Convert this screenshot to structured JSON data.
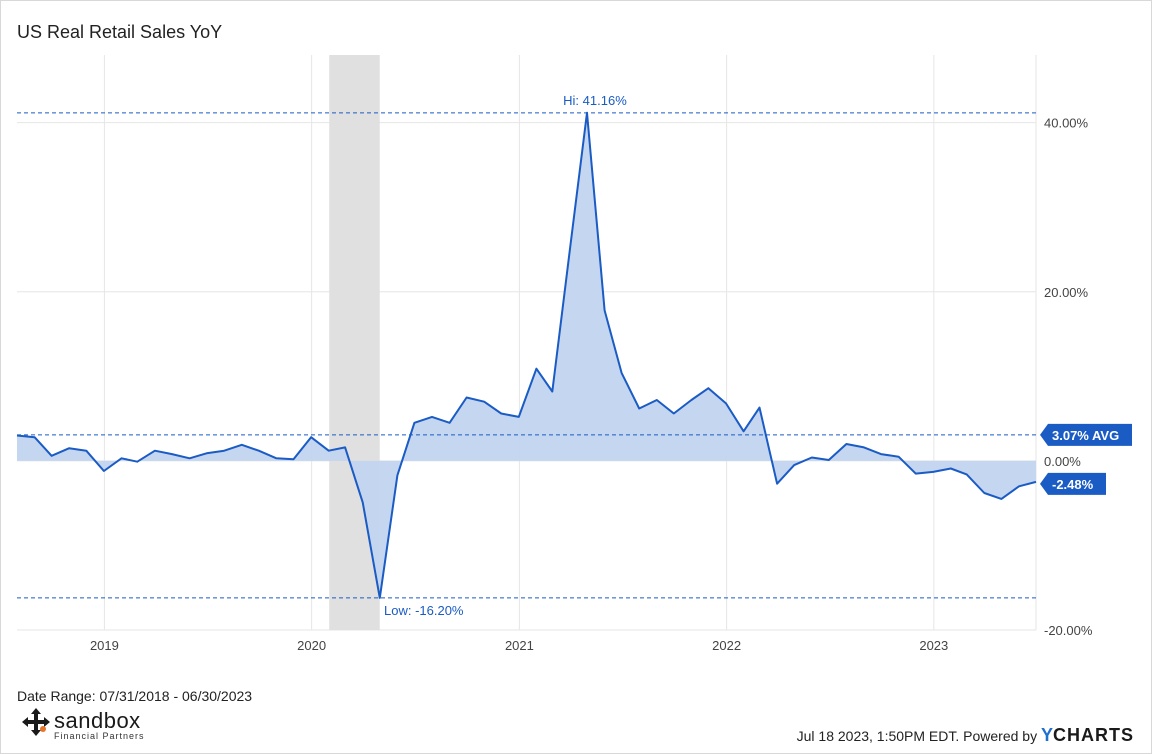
{
  "chart_data": {
    "type": "area",
    "title": "US Real Retail Sales YoY",
    "x_range": [
      "2018-07-31",
      "2023-06-30"
    ],
    "ylim": [
      -20,
      48
    ],
    "y_ticks": [
      {
        "value": 40,
        "label": "40.00%"
      },
      {
        "value": 20,
        "label": "20.00%"
      },
      {
        "value": 0,
        "label": "0.00%"
      },
      {
        "value": -20,
        "label": "-20.00%"
      }
    ],
    "x_ticks": [
      "2019",
      "2020",
      "2021",
      "2022",
      "2023"
    ],
    "x_tick_dates": [
      "2019-01-01",
      "2020-01-01",
      "2021-01-01",
      "2022-01-01",
      "2023-01-01"
    ],
    "recession_shading": [
      "2020-02-01",
      "2020-04-30"
    ],
    "grid": true,
    "series": [
      {
        "points": [
          [
            "2018-07-31",
            3.0
          ],
          [
            "2018-08-31",
            2.8
          ],
          [
            "2018-09-30",
            0.6
          ],
          [
            "2018-10-31",
            1.5
          ],
          [
            "2018-11-30",
            1.2
          ],
          [
            "2018-12-31",
            -1.2
          ],
          [
            "2019-01-31",
            0.3
          ],
          [
            "2019-02-28",
            -0.1
          ],
          [
            "2019-03-31",
            1.2
          ],
          [
            "2019-04-30",
            0.8
          ],
          [
            "2019-05-31",
            0.3
          ],
          [
            "2019-06-30",
            0.9
          ],
          [
            "2019-07-31",
            1.2
          ],
          [
            "2019-08-31",
            1.9
          ],
          [
            "2019-09-30",
            1.2
          ],
          [
            "2019-10-31",
            0.3
          ],
          [
            "2019-11-30",
            0.2
          ],
          [
            "2019-12-31",
            2.8
          ],
          [
            "2020-01-31",
            1.2
          ],
          [
            "2020-02-29",
            1.6
          ],
          [
            "2020-03-31",
            -4.9
          ],
          [
            "2020-04-30",
            -16.2
          ],
          [
            "2020-05-31",
            -1.7
          ],
          [
            "2020-06-30",
            4.5
          ],
          [
            "2020-07-31",
            5.2
          ],
          [
            "2020-08-31",
            4.5
          ],
          [
            "2020-09-30",
            7.5
          ],
          [
            "2020-10-31",
            7.0
          ],
          [
            "2020-11-30",
            5.6
          ],
          [
            "2020-12-31",
            5.2
          ],
          [
            "2021-01-31",
            10.9
          ],
          [
            "2021-02-28",
            8.2
          ],
          [
            "2021-03-31",
            25.0
          ],
          [
            "2021-04-30",
            41.16
          ],
          [
            "2021-05-31",
            17.8
          ],
          [
            "2021-06-30",
            10.4
          ],
          [
            "2021-07-31",
            6.2
          ],
          [
            "2021-08-31",
            7.2
          ],
          [
            "2021-09-30",
            5.6
          ],
          [
            "2021-10-31",
            7.2
          ],
          [
            "2021-11-30",
            8.6
          ],
          [
            "2021-12-31",
            6.8
          ],
          [
            "2022-01-31",
            3.5
          ],
          [
            "2022-02-28",
            6.3
          ],
          [
            "2022-03-31",
            -2.7
          ],
          [
            "2022-04-30",
            -0.5
          ],
          [
            "2022-05-31",
            0.4
          ],
          [
            "2022-06-30",
            0.1
          ],
          [
            "2022-07-31",
            2.0
          ],
          [
            "2022-08-31",
            1.6
          ],
          [
            "2022-09-30",
            0.8
          ],
          [
            "2022-10-31",
            0.5
          ],
          [
            "2022-11-30",
            -1.5
          ],
          [
            "2022-12-31",
            -1.3
          ],
          [
            "2023-01-31",
            -0.9
          ],
          [
            "2023-02-28",
            -1.6
          ],
          [
            "2023-03-31",
            -3.8
          ],
          [
            "2023-04-30",
            -4.5
          ],
          [
            "2023-05-31",
            -3.0
          ],
          [
            "2023-06-30",
            -2.48
          ]
        ],
        "color": "#1a5bc4",
        "fill": "#c2d4f0"
      }
    ],
    "reference_lines": [
      {
        "key": "hi",
        "value": 41.16,
        "label": "Hi: 41.16%",
        "date": "2021-04-30"
      },
      {
        "key": "avg",
        "value": 3.07,
        "label": "3.07% AVG"
      },
      {
        "key": "low",
        "value": -16.2,
        "label": "Low: -16.20%",
        "date": "2020-04-30"
      }
    ],
    "last_value_label": "-2.48%",
    "colors": {
      "line": "#1a5bc4",
      "fill": "#c2d4f0",
      "recession": "#e0e0e0",
      "grid": "#e6e6e6",
      "tag": "#1a5bc4"
    }
  },
  "footer": {
    "date_range": "Date Range: 07/31/2018 - 06/30/2023",
    "timestamp": "Jul 18 2023, 1:50PM EDT. Powered by",
    "brand_y": "Y",
    "brand_rest": "CHARTS"
  },
  "logo": {
    "name": "sandbox",
    "subtitle": "Financial Partners",
    "icon": "arrows-cross-icon"
  }
}
